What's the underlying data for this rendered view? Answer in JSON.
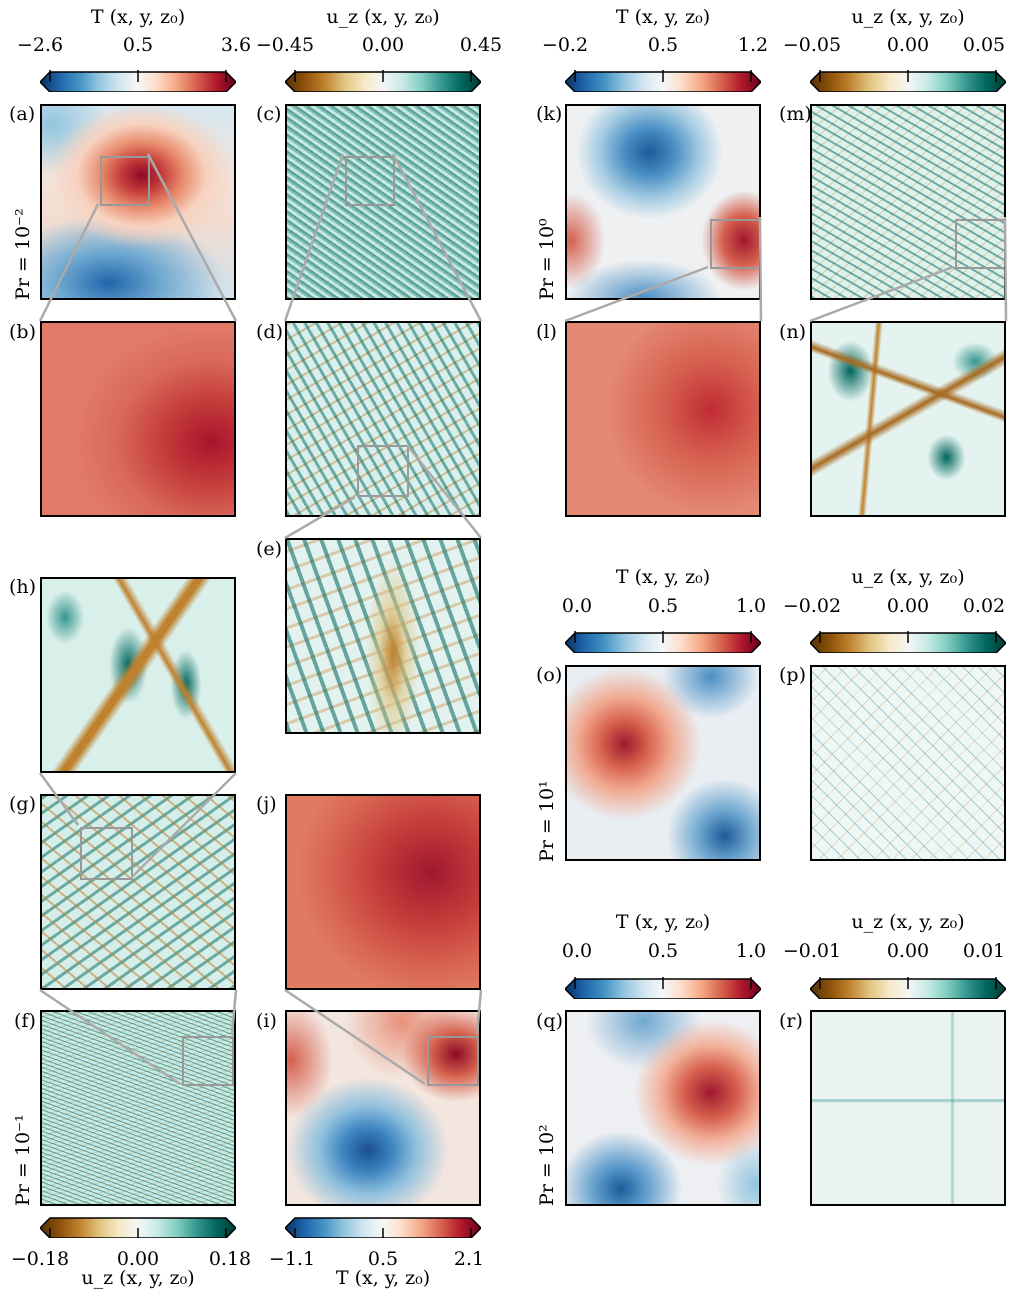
{
  "colormaps": {
    "temperature": [
      "#053061",
      "#2166ac",
      "#4393c3",
      "#92c5de",
      "#d1e5f0",
      "#f7f7f7",
      "#fddbc7",
      "#f4a582",
      "#d6604d",
      "#b2182b",
      "#67001f"
    ],
    "velocity": [
      "#543005",
      "#8c510a",
      "#bf812d",
      "#dfc27d",
      "#f6e8c3",
      "#f5f5f5",
      "#c7eae5",
      "#80cdc1",
      "#35978f",
      "#01665e",
      "#003c30"
    ]
  },
  "colorbars": {
    "cb_a": {
      "label": "T (x, y, z₀)",
      "ticks": [
        "−2.6",
        "0.5",
        "3.6"
      ]
    },
    "cb_c": {
      "label": "u_z (x, y, z₀)",
      "ticks": [
        "−0.45",
        "0.00",
        "0.45"
      ]
    },
    "cb_k": {
      "label": "T (x, y, z₀)",
      "ticks": [
        "−0.2",
        "0.5",
        "1.2"
      ]
    },
    "cb_m": {
      "label": "u_z (x, y, z₀)",
      "ticks": [
        "−0.05",
        "0.00",
        "0.05"
      ]
    },
    "cb_o": {
      "label": "T (x, y, z₀)",
      "ticks": [
        "0.0",
        "0.5",
        "1.0"
      ]
    },
    "cb_p": {
      "label": "u_z (x, y, z₀)",
      "ticks": [
        "−0.02",
        "0.00",
        "0.02"
      ]
    },
    "cb_q": {
      "label": "T (x, y, z₀)",
      "ticks": [
        "0.0",
        "0.5",
        "1.0"
      ]
    },
    "cb_r": {
      "label": "u_z (x, y, z₀)",
      "ticks": [
        "−0.01",
        "0.00",
        "0.01"
      ]
    },
    "cb_f": {
      "label": "u_z (x, y, z₀)",
      "ticks": [
        "−0.18",
        "0.00",
        "0.18"
      ]
    },
    "cb_i": {
      "label": "T (x, y, z₀)",
      "ticks": [
        "−1.1",
        "0.5",
        "2.1"
      ]
    }
  },
  "row_labels": {
    "pr_a": "Pr = 10⁻²",
    "pr_k": "Pr = 10⁰",
    "pr_o": "Pr = 10¹",
    "pr_q": "Pr = 10²",
    "pr_f": "Pr = 10⁻¹"
  },
  "panels": {
    "a": "(a)",
    "b": "(b)",
    "c": "(c)",
    "d": "(d)",
    "e": "(e)",
    "f": "(f)",
    "g": "(g)",
    "h": "(h)",
    "i": "(i)",
    "j": "(j)",
    "k": "(k)",
    "l": "(l)",
    "m": "(m)",
    "n": "(n)",
    "o": "(o)",
    "p": "(p)",
    "q": "(q)",
    "r": "(r)"
  }
}
